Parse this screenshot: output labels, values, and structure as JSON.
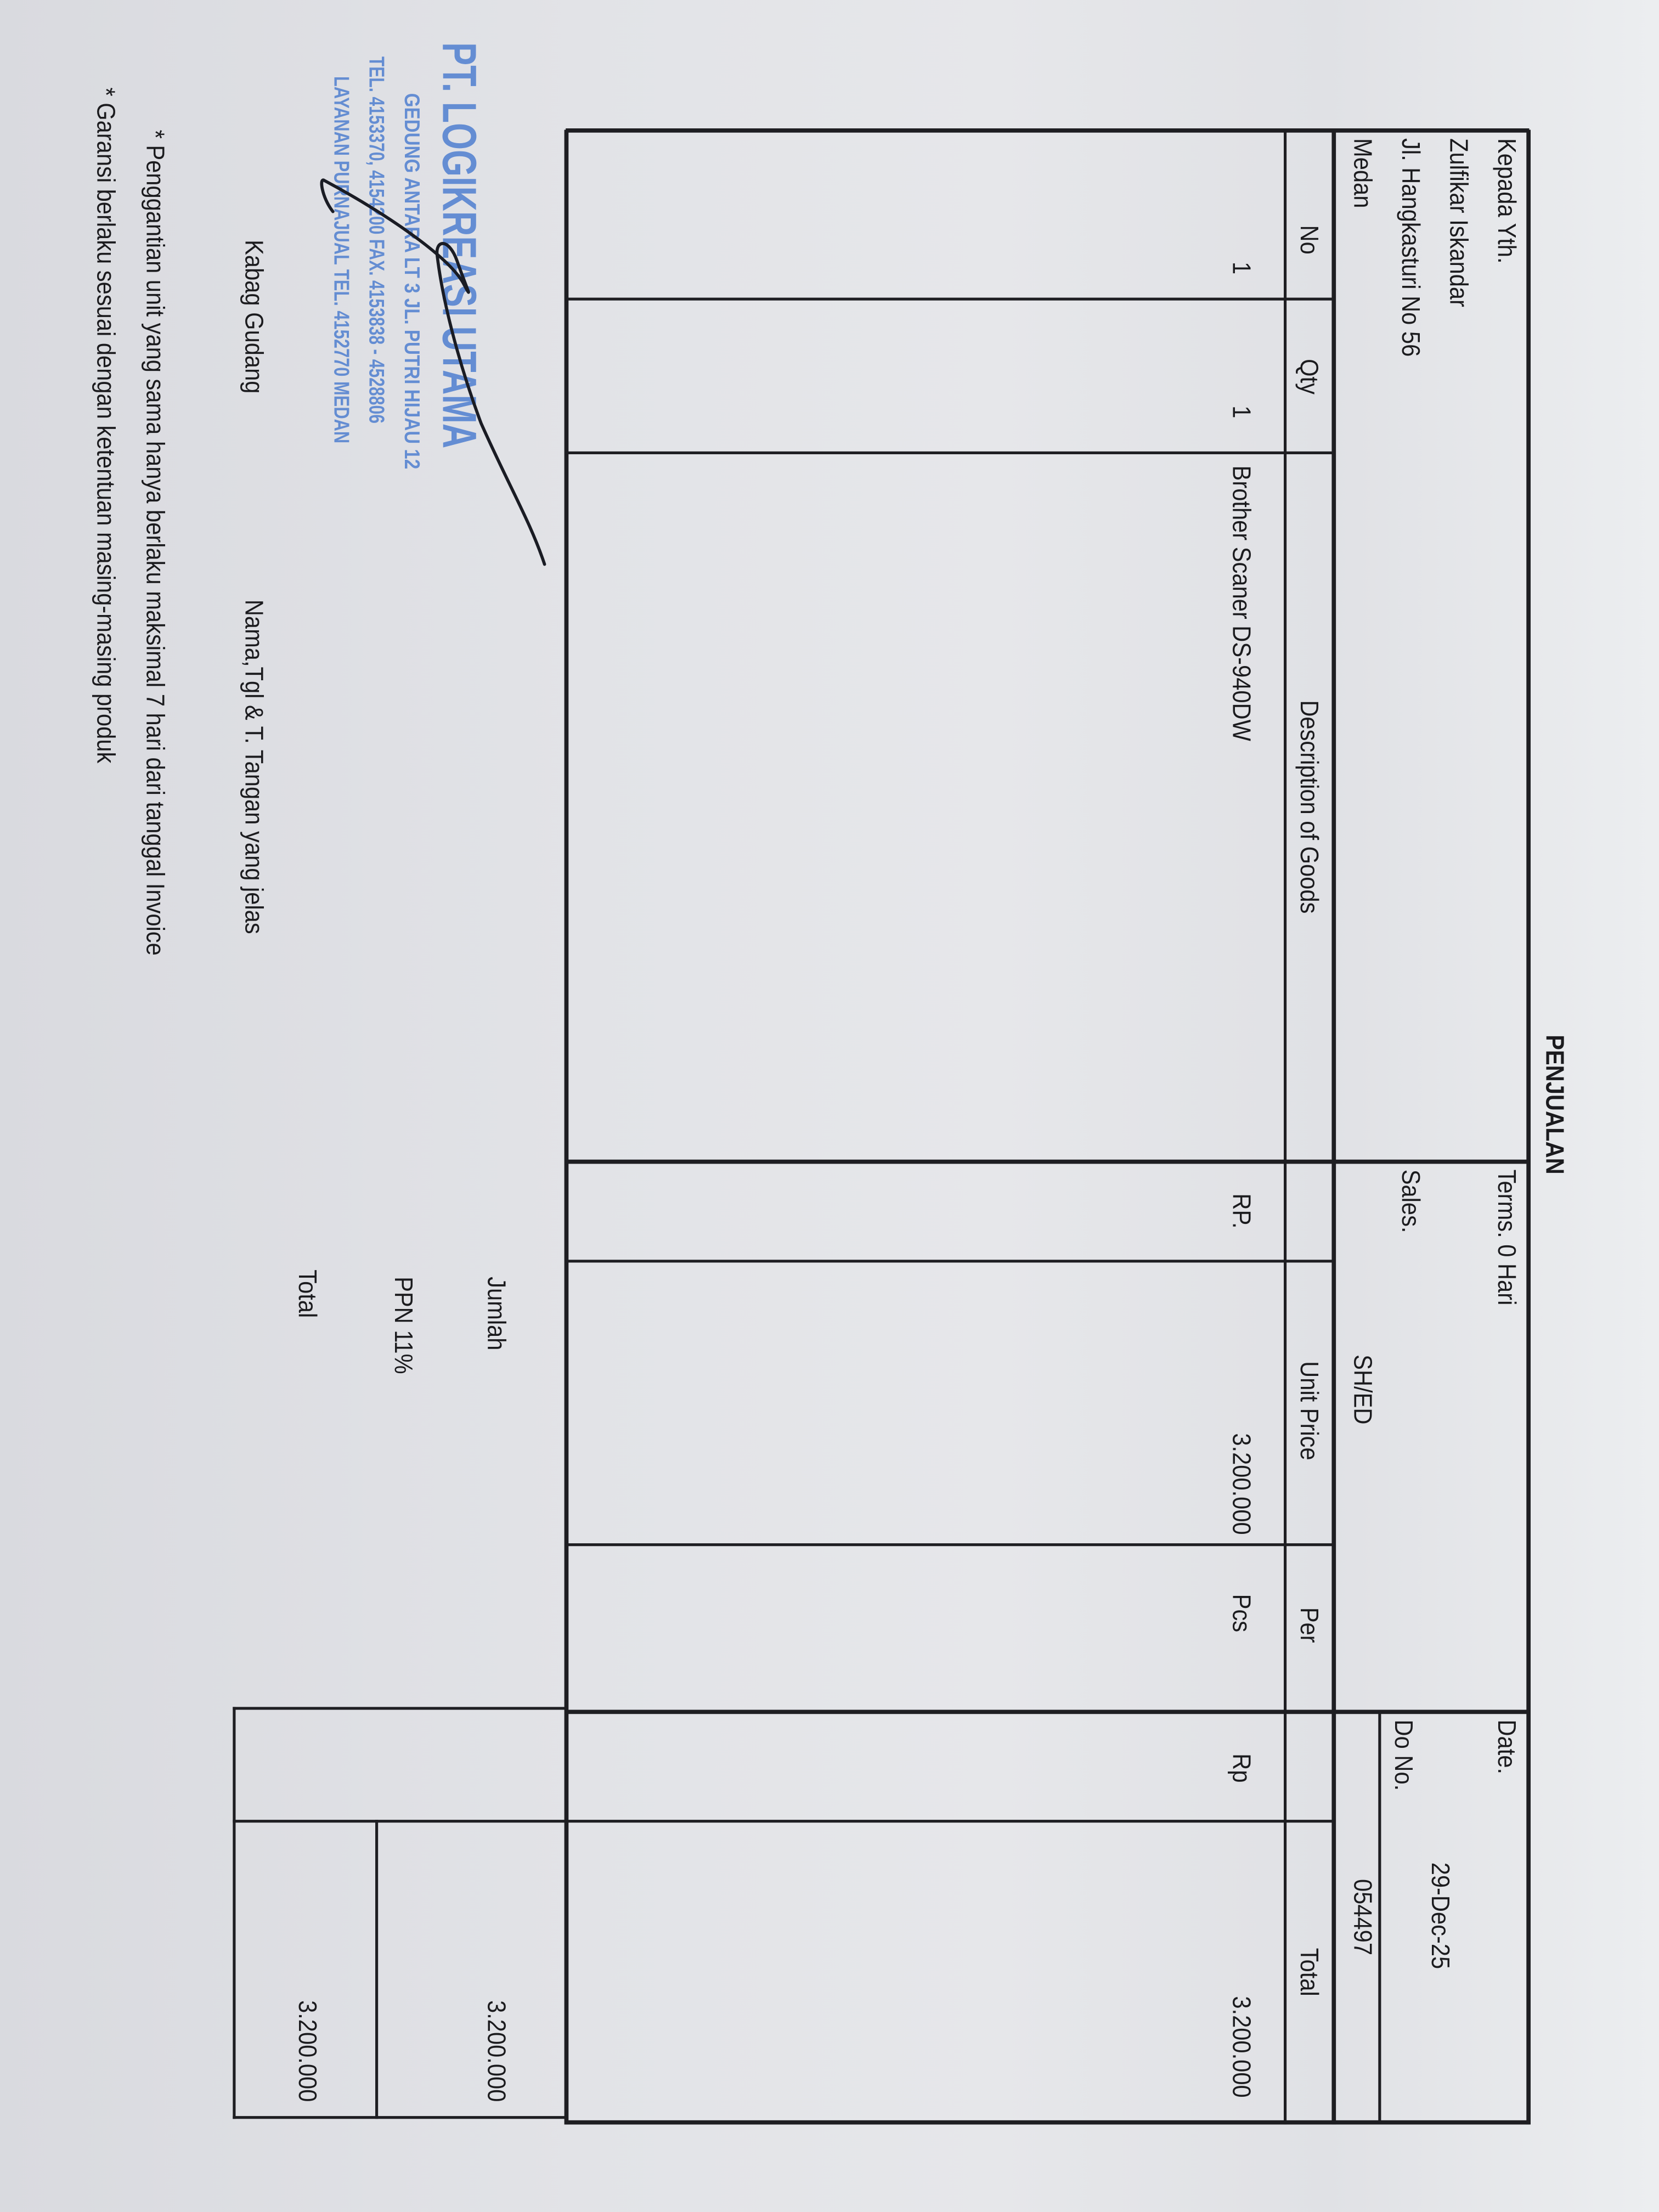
{
  "document": {
    "title": "PENJUALAN",
    "recipient": {
      "label": "Kepada Yth.",
      "name": "Zulfikar Iskandar",
      "address": "Jl. Hangkasturi No 56",
      "city": "Medan"
    },
    "terms": "Terms. 0 Hari",
    "sales_label": "Sales.",
    "sales_value": "SH/ED",
    "date_label": "Date.",
    "date_value": "29-Dec-25",
    "do_label": "Do No.",
    "do_value": "054497",
    "table": {
      "headers": [
        "No",
        "Qty",
        "Description of Goods",
        "Unit Price",
        "Per",
        "Total"
      ],
      "rows": [
        {
          "no": "1",
          "qty": "1",
          "description": "Brother Scaner DS-940DW",
          "price_currency": "RP.",
          "unit_price": "3.200.000",
          "per": "Pcs",
          "total_currency": "Rp",
          "total": "3.200.000"
        }
      ]
    },
    "summary": {
      "jumlah_label": "Jumlah",
      "jumlah_value": "3.200.000",
      "ppn_label": "PPN 11%",
      "total_label": "Total",
      "total_value": "3.200.000"
    },
    "signatures": {
      "warehouse": "Kabag Gudang",
      "receiver": "Nama,Tgl & T. Tangan yang jelas"
    },
    "stamp": {
      "company": "PT. LOGIKREASI UTAMA",
      "line1": "GEDUNG ANTARA LT 3 JL. PUTRI HIJAU 12",
      "line2": "TEL. 4153370, 4154200 FAX. 4153838 - 4528806",
      "line3": "LAYANAN PURNAJUAL TEL. 4152770 MEDAN",
      "color": "#4f7fd0"
    },
    "notes": [
      "* Penggantian unit yang sama hanya berlaku maksimal 7 hari dari tanggal Invoice",
      "* Garansi berlaku sesuai dengan ketentuan masing-masing produk"
    ]
  }
}
